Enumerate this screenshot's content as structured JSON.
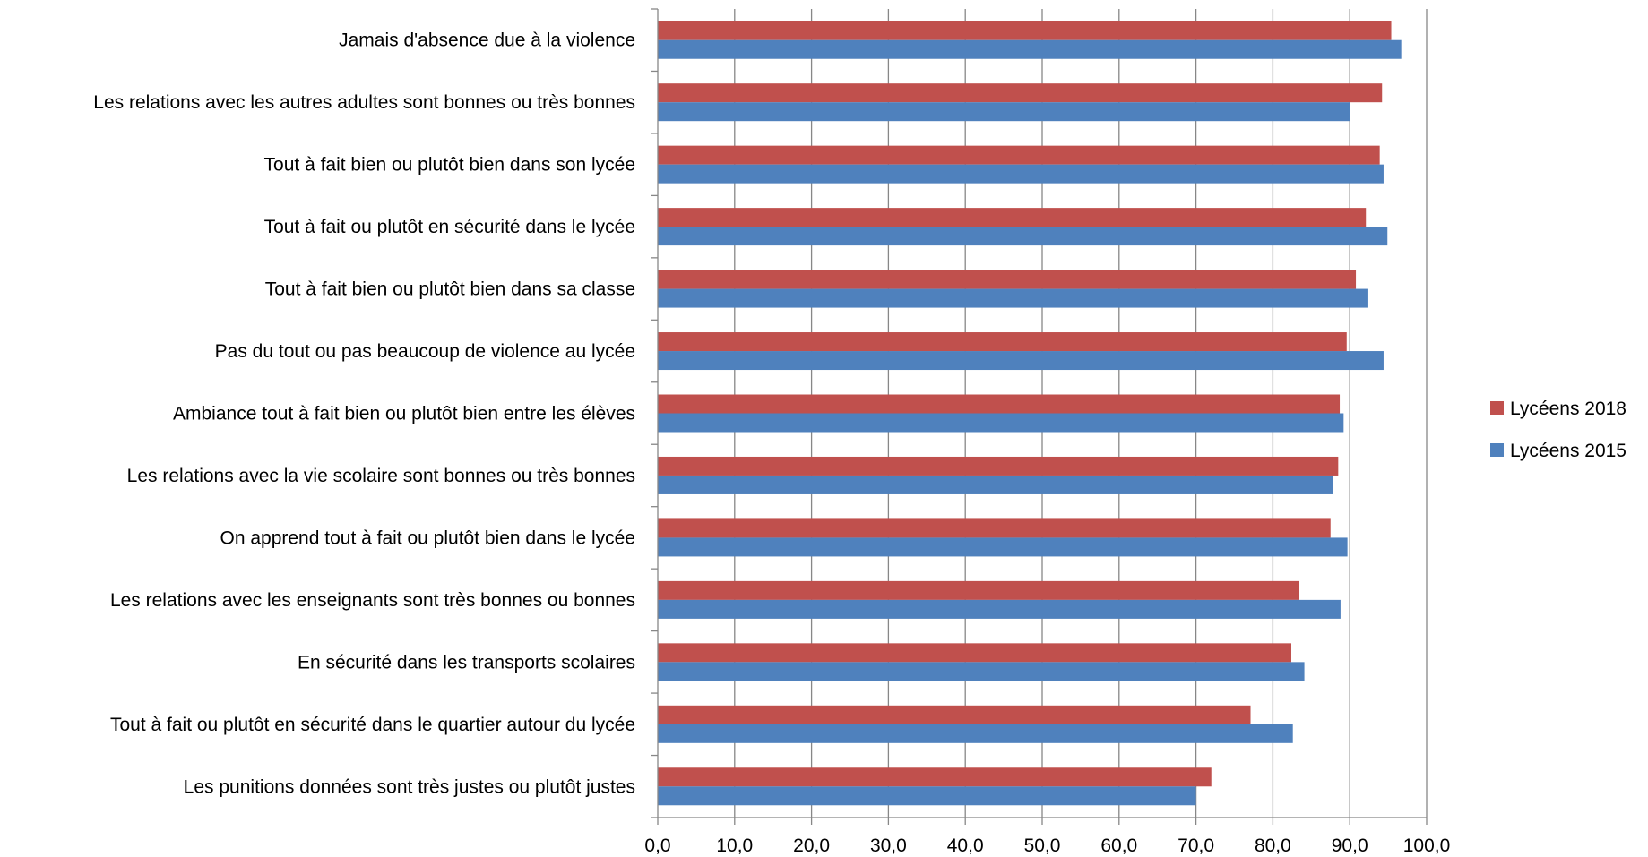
{
  "chart_data": {
    "type": "bar",
    "orientation": "horizontal",
    "categories": [
      "Jamais d'absence due à la violence",
      "Les relations avec les autres adultes sont bonnes ou très bonnes",
      "Tout à fait bien ou plutôt bien dans son lycée",
      "Tout à fait ou plutôt en sécurité dans le lycée",
      "Tout à fait bien ou plutôt bien dans sa classe",
      "Pas du tout ou pas beaucoup de violence au lycée",
      "Ambiance tout à fait bien ou plutôt bien entre les élèves",
      "Les relations avec la vie scolaire sont bonnes ou très bonnes",
      "On apprend tout à fait ou plutôt bien dans le lycée",
      "Les relations avec les enseignants sont très bonnes ou bonnes",
      "En sécurité dans les transports scolaires",
      "Tout à fait ou plutôt en sécurité dans le quartier autour du lycée",
      "Les punitions données sont très justes ou plutôt justes"
    ],
    "series": [
      {
        "name": "Lycéens 2018",
        "color": "#c0504d",
        "values": [
          95.4,
          94.2,
          93.9,
          92.1,
          90.8,
          89.6,
          88.7,
          88.5,
          87.5,
          83.4,
          82.4,
          77.1,
          72.0
        ]
      },
      {
        "name": "Lycéens 2015",
        "color": "#4f81bd",
        "values": [
          96.7,
          90.0,
          94.4,
          94.9,
          92.3,
          94.4,
          89.2,
          87.8,
          89.7,
          88.8,
          84.1,
          82.6,
          70.0
        ]
      }
    ],
    "xlim": [
      0,
      100
    ],
    "xticks": [
      "0,0",
      "10,0",
      "20,0",
      "30,0",
      "40,0",
      "50,0",
      "60,0",
      "70,0",
      "80,0",
      "90,0",
      "100,0"
    ],
    "grid": "vertical",
    "legend_position": "right",
    "legend_order": [
      0,
      1
    ],
    "title": "",
    "xlabel": "",
    "ylabel": ""
  }
}
